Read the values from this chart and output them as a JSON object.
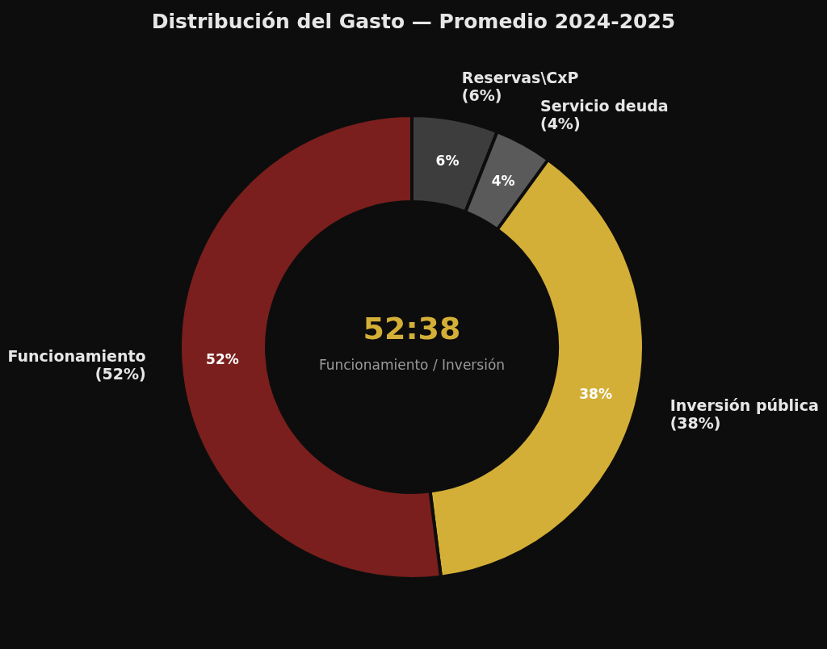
{
  "chart_data": {
    "type": "donut",
    "title": "Distribución del Gasto — Promedio 2024-2025",
    "categories": [
      "Reservas\\CxP\n(6%)",
      "Servicio deuda\n(4%)",
      "Inversión pública\n(38%)",
      "Funcionamiento\n(52%)"
    ],
    "values": [
      6,
      4,
      38,
      52
    ],
    "colors": [
      "#3d3d3d",
      "#5a5a5a",
      "#d4af37",
      "#7a1f1d"
    ],
    "value_labels": [
      "6%",
      "4%",
      "38%",
      "52%"
    ],
    "annotations": [
      "52:38",
      "Funcionamiento / Inversión"
    ],
    "legend": false
  }
}
